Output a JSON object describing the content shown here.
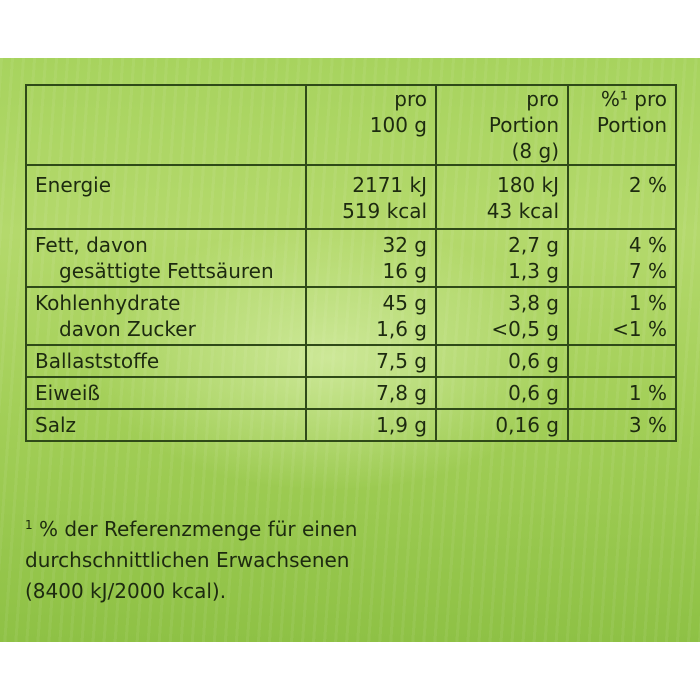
{
  "table": {
    "headers": [
      {
        "lines": [
          ""
        ]
      },
      {
        "lines": [
          "pro",
          "100 g"
        ]
      },
      {
        "lines": [
          "pro",
          "Portion",
          "(8 g)"
        ]
      },
      {
        "lines": [
          "%¹ pro",
          "Portion"
        ]
      }
    ],
    "rows": [
      {
        "id": "energie",
        "labels": [
          "Energie"
        ],
        "per100": [
          "2171 kJ",
          "519 kcal"
        ],
        "perPortion": [
          "180 kJ",
          "43 kcal"
        ],
        "percent": [
          "2 %"
        ]
      },
      {
        "id": "fett",
        "labels": [
          "Fett, davon",
          "gesättigte Fettsäuren"
        ],
        "per100": [
          "32 g",
          "16 g"
        ],
        "perPortion": [
          "2,7 g",
          "1,3 g"
        ],
        "percent": [
          "4 %",
          "7 %"
        ]
      },
      {
        "id": "kohlenhydrate",
        "labels": [
          "Kohlenhydrate",
          "davon Zucker"
        ],
        "per100": [
          "45 g",
          "1,6 g"
        ],
        "perPortion": [
          "3,8 g",
          "<0,5 g"
        ],
        "percent": [
          "1 %",
          "<1 %"
        ]
      },
      {
        "id": "ballaststoffe",
        "labels": [
          "Ballaststoffe"
        ],
        "per100": [
          "7,5 g"
        ],
        "perPortion": [
          "0,6 g"
        ],
        "percent": [
          ""
        ]
      },
      {
        "id": "eiweiss",
        "labels": [
          "Eiweiß"
        ],
        "per100": [
          "7,8 g"
        ],
        "perPortion": [
          "0,6 g"
        ],
        "percent": [
          "1 %"
        ]
      },
      {
        "id": "salz",
        "labels": [
          "Salz"
        ],
        "per100": [
          "1,9 g"
        ],
        "perPortion": [
          "0,16 g"
        ],
        "percent": [
          "3 %"
        ]
      }
    ]
  },
  "footnote": {
    "marker": "1",
    "lines": [
      "% der Referenzmenge für einen",
      "durchschnittlichen Erwachsenen",
      "(8400 kJ/2000 kcal)."
    ]
  },
  "colors": {
    "background": "#a7d35e",
    "border": "#2f4a18",
    "text": "#1d2a10"
  }
}
